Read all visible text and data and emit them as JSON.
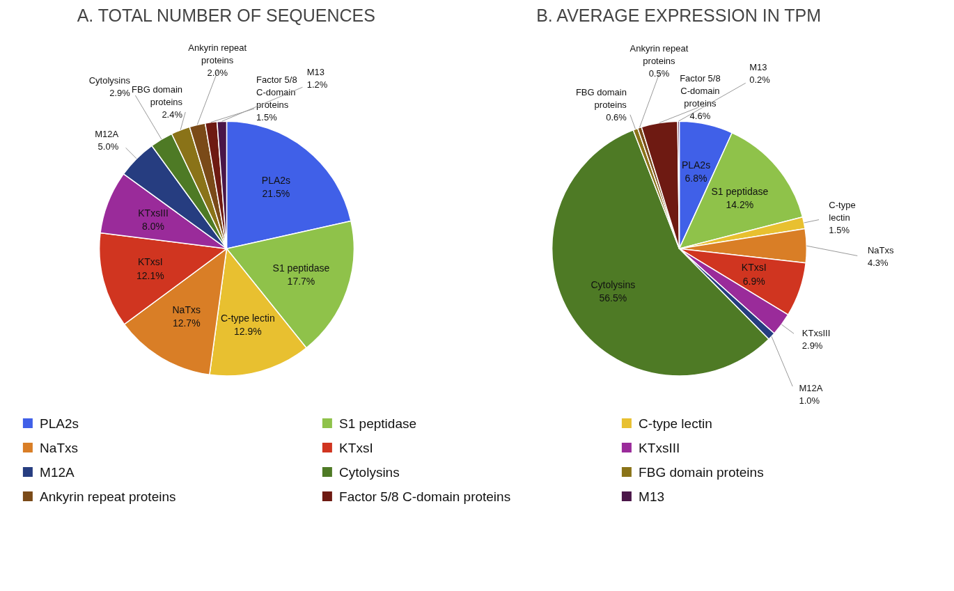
{
  "chart_data": [
    {
      "type": "pie",
      "title": "A. TOTAL NUMBER OF SEQUENCES",
      "legend": "bottom",
      "categories": [
        "PLA2s",
        "S1 peptidase",
        "C-type lectin",
        "NaTxs",
        "KTxsI",
        "KTxsIII",
        "M12A",
        "Cytolysins",
        "FBG domain proteins",
        "Ankyrin repeat proteins",
        "Factor 5/8 C-domain proteins",
        "M13"
      ],
      "values": [
        21.5,
        17.7,
        12.9,
        12.7,
        12.1,
        8.0,
        5.0,
        2.9,
        2.4,
        2.0,
        1.5,
        1.2
      ],
      "value_labels": [
        "21.5%",
        "17.7%",
        "12.9%",
        "12.7%",
        "12.1%",
        "8.0%",
        "5.0%",
        "2.9%",
        "2.4%",
        "2.0%",
        "1.5%",
        "1.2%"
      ],
      "colors": [
        "#4060e8",
        "#8fc24a",
        "#e8c030",
        "#d97e26",
        "#d03520",
        "#9a2b9a",
        "#263d80",
        "#4e7a25",
        "#8a7318",
        "#7a4a18",
        "#6e1a12",
        "#4a1648"
      ]
    },
    {
      "type": "pie",
      "title": "B. AVERAGE EXPRESSION IN TPM",
      "categories": [
        "PLA2s",
        "S1 peptidase",
        "C-type lectin",
        "NaTxs",
        "KTxsI",
        "KTxsIII",
        "M12A",
        "Cytolysins",
        "FBG domain proteins",
        "Ankyrin repeat proteins",
        "Factor 5/8 C-domain proteins",
        "M13"
      ],
      "values": [
        6.8,
        14.2,
        1.5,
        4.3,
        6.9,
        2.9,
        1.0,
        56.5,
        0.6,
        0.5,
        4.6,
        0.2
      ],
      "value_labels": [
        "6.8%",
        "14.2%",
        "1.5%",
        "4.3%",
        "6.9%",
        "2.9%",
        "1.0%",
        "56.5%",
        "0.6%",
        "0.5%",
        "4.6%",
        "0.2%"
      ],
      "colors": [
        "#4060e8",
        "#8fc24a",
        "#e8c030",
        "#d97e26",
        "#d03520",
        "#9a2b9a",
        "#263d80",
        "#4e7a25",
        "#8a7318",
        "#7a4a18",
        "#6e1a12",
        "#4a1648"
      ]
    }
  ]
}
